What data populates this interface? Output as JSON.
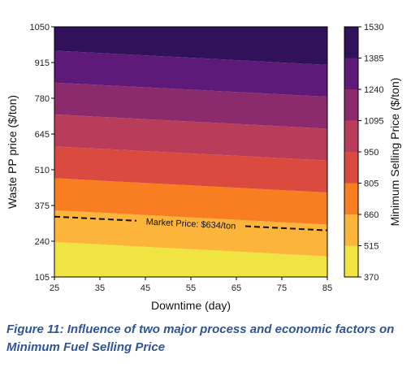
{
  "caption": "Figure 11: Influence of two major process and economic factors on Minimum Fuel Selling Price",
  "chart_data": {
    "type": "heatmap",
    "xlabel": "Downtime (day)",
    "ylabel": "Waste PP price ($/ton)",
    "colorbar_label": "Minimum Selling Price ($/ton)",
    "xlim": [
      25,
      85
    ],
    "ylim": [
      105,
      1050
    ],
    "x_ticks": [
      "25",
      "35",
      "45",
      "55",
      "65",
      "75",
      "85"
    ],
    "y_ticks": [
      "105",
      "240",
      "375",
      "510",
      "645",
      "780",
      "915",
      "1050"
    ],
    "colorbar_ticks": [
      "370",
      "515",
      "660",
      "805",
      "950",
      "1095",
      "1240",
      "1385",
      "1530"
    ],
    "levels": [
      370,
      515,
      660,
      805,
      950,
      1095,
      1240,
      1385,
      1530
    ],
    "level_colors": [
      "#f0e442",
      "#fcb43a",
      "#f97d21",
      "#db4a3e",
      "#b93c59",
      "#8c2a6e",
      "#5d1a78",
      "#30115a",
      "#0c0a23"
    ],
    "contour_boundaries": [
      {
        "upper_level": 515,
        "waste_pp_at_x25": 237,
        "waste_pp_at_x85": 183
      },
      {
        "upper_level": 660,
        "waste_pp_at_x25": 357,
        "waste_pp_at_x85": 303
      },
      {
        "upper_level": 805,
        "waste_pp_at_x25": 478,
        "waste_pp_at_x85": 424
      },
      {
        "upper_level": 950,
        "waste_pp_at_x25": 598,
        "waste_pp_at_x85": 545
      },
      {
        "upper_level": 1095,
        "waste_pp_at_x25": 719,
        "waste_pp_at_x85": 665
      },
      {
        "upper_level": 1240,
        "waste_pp_at_x25": 839,
        "waste_pp_at_x85": 786
      },
      {
        "upper_level": 1385,
        "waste_pp_at_x25": 960,
        "waste_pp_at_x85": 906
      }
    ],
    "market_price_line": {
      "label": "Market Price:  $634/ton",
      "style": "dashed",
      "color": "#111111",
      "waste_pp_at_x25": 333,
      "waste_pp_at_x85": 281
    },
    "grid": false
  }
}
